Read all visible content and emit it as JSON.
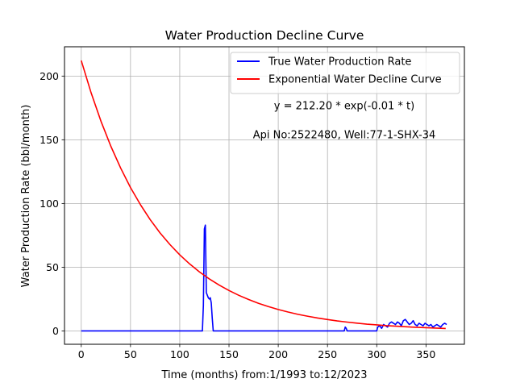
{
  "chart_data": {
    "type": "line",
    "title": "Water Production Decline Curve",
    "xlabel": "Time (months) from:1/1993 to:12/2023",
    "ylabel": "Water Production Rate (bbl/month)",
    "xlim": [
      -17,
      389
    ],
    "ylim": [
      -10.5,
      223
    ],
    "xticks": [
      0,
      50,
      100,
      150,
      200,
      250,
      300,
      350
    ],
    "yticks": [
      0,
      50,
      100,
      150,
      200
    ],
    "grid": true,
    "legend_position": "top-right",
    "annotations": [
      "y = 212.20 * exp(-0.01 * t)",
      "Api No:2522480, Well:77-1-SHX-34"
    ],
    "series": [
      {
        "name": "True Water Production Rate",
        "color": "#0000ff",
        "x": [
          0,
          123,
          124,
          125,
          126,
          127,
          128,
          129,
          130,
          131,
          132,
          133,
          134,
          135,
          267,
          268,
          269,
          270,
          300,
          301,
          303,
          305,
          307,
          309,
          311,
          313,
          315,
          317,
          319,
          321,
          323,
          325,
          327,
          329,
          331,
          333,
          335,
          337,
          339,
          341,
          343,
          345,
          347,
          349,
          351,
          353,
          355,
          357,
          359,
          361,
          363,
          365,
          367,
          369,
          371
        ],
        "y": [
          0,
          0,
          20,
          80,
          83,
          30,
          28,
          26,
          25,
          26,
          22,
          10,
          0,
          0,
          0,
          3,
          2,
          0,
          0,
          3,
          4,
          2,
          5,
          4,
          3,
          6,
          7,
          6,
          5,
          7,
          6,
          4,
          8,
          9,
          7,
          5,
          6,
          8,
          5,
          4,
          6,
          5,
          4,
          6,
          5,
          4,
          5,
          3,
          4,
          5,
          4,
          3,
          5,
          6,
          5
        ]
      },
      {
        "name": "Exponential Water Decline Curve",
        "color": "#ff0000",
        "x": [
          0,
          10,
          20,
          30,
          40,
          50,
          60,
          70,
          80,
          90,
          100,
          110,
          120,
          130,
          140,
          150,
          160,
          170,
          180,
          190,
          200,
          210,
          220,
          230,
          240,
          250,
          260,
          270,
          280,
          290,
          300,
          310,
          320,
          330,
          340,
          350,
          360,
          370
        ],
        "y": [
          212.2,
          186.9,
          164.6,
          145.0,
          127.8,
          112.5,
          99.2,
          87.3,
          76.9,
          67.8,
          59.7,
          52.6,
          46.3,
          40.8,
          36.0,
          31.7,
          27.9,
          24.6,
          21.6,
          19.1,
          16.8,
          14.8,
          13.0,
          11.5,
          10.1,
          8.9,
          7.8,
          6.9,
          6.1,
          5.3,
          4.7,
          4.1,
          3.7,
          3.2,
          2.8,
          2.5,
          2.2,
          1.9
        ]
      }
    ]
  }
}
